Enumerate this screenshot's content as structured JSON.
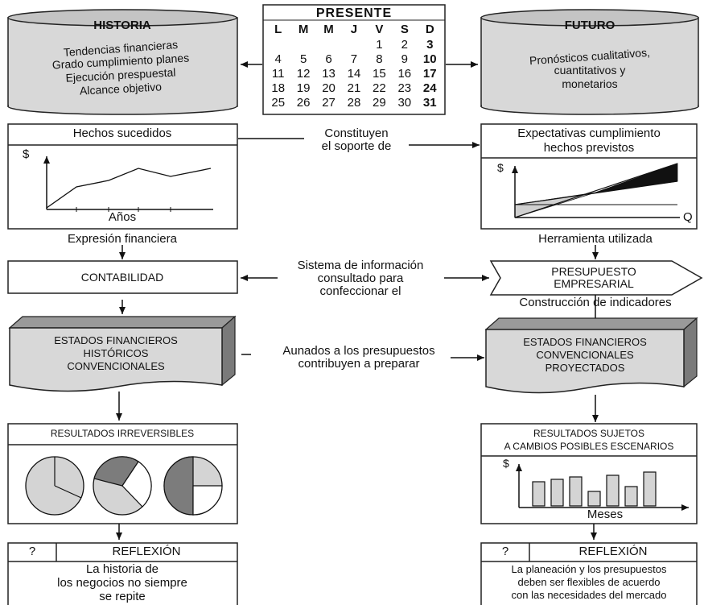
{
  "historia": {
    "title": "HISTORIA",
    "items": [
      "Tendencias financieras",
      "Grado cumplimiento planes",
      "Ejecución prespuestal",
      "Alcance objetivo"
    ]
  },
  "presente": {
    "title": "PRESENTE",
    "days": [
      "L",
      "M",
      "M",
      "J",
      "V",
      "S",
      "D"
    ],
    "weeks": [
      [
        "",
        "",
        "",
        "",
        "1",
        "2",
        "3"
      ],
      [
        "4",
        "5",
        "6",
        "7",
        "8",
        "9",
        "10"
      ],
      [
        "11",
        "12",
        "13",
        "14",
        "15",
        "16",
        "17"
      ],
      [
        "18",
        "19",
        "20",
        "21",
        "22",
        "23",
        "24"
      ],
      [
        "25",
        "26",
        "27",
        "28",
        "29",
        "30",
        "31"
      ]
    ]
  },
  "futuro": {
    "title": "FUTURO",
    "lines": [
      "Pronósticos cualitativos,",
      "cuantitativos y",
      "monetarios"
    ]
  },
  "hechos": {
    "title": "Hechos sucedidos",
    "ylabel": "$",
    "xlabel": "Años",
    "below": "Expresión financiera"
  },
  "soporte": {
    "line1": "Constituyen",
    "line2": "el soporte de"
  },
  "expectativas": {
    "line1": "Expectativas cumplimiento",
    "line2": "hechos previstos",
    "ylabel": "$",
    "xlabel": "Q",
    "below": "Herramienta utilizada"
  },
  "contabilidad": {
    "label": "CONTABILIDAD"
  },
  "sistema": {
    "line1": "Sistema de información",
    "line2": "consultado para",
    "line3": "confeccionar el"
  },
  "presupuesto": {
    "line1": "PRESUPUESTO",
    "line2": "EMPRESARIAL",
    "below": "Construcción de indicadores"
  },
  "ef_historicos": {
    "line1": "ESTADOS FINANCIEROS",
    "line2": "HISTÓRICOS",
    "line3": "CONVENCIONALES"
  },
  "aunados": {
    "line1": "Aunados a los presupuestos",
    "line2": "contribuyen a preparar"
  },
  "ef_proyectados": {
    "line1": "ESTADOS FINANCIEROS",
    "line2": "CONVENCIONALES",
    "line3": "PROYECTADOS"
  },
  "irreversibles": {
    "title": "RESULTADOS IRREVERSIBLES"
  },
  "sujetos": {
    "line1": "RESULTADOS SUJETOS",
    "line2": "A CAMBIOS POSIBLES ESCENARIOS",
    "ylabel": "$",
    "xlabel": "Meses"
  },
  "reflexion_left": {
    "q": "?",
    "title": "REFLEXIÓN",
    "line1": "La historia de",
    "line2": "los negocios no siempre",
    "line3": "se repite"
  },
  "reflexion_right": {
    "q": "?",
    "title": "REFLEXIÓN",
    "line1": "La planeación y los presupuestos",
    "line2": "deben ser flexibles de acuerdo",
    "line3": "con las necesidades del mercado"
  }
}
